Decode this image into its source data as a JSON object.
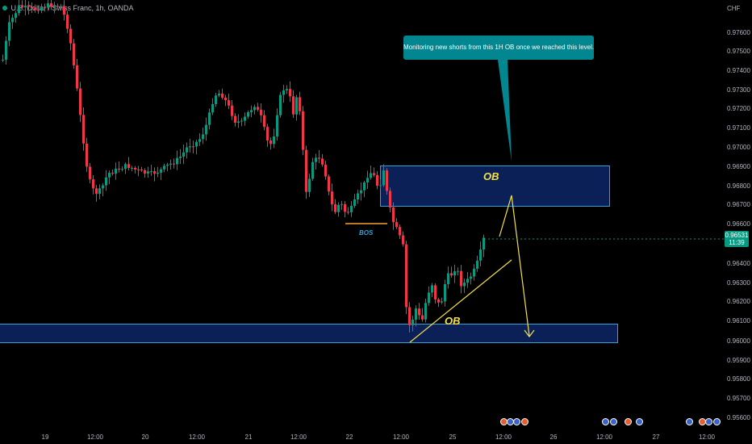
{
  "header": {
    "symbol_title": "U.S. Dollar / Swiss Franc, 1h, OANDA"
  },
  "price_axis": {
    "currency": "CHF",
    "ticks": [
      "0.97600",
      "0.97500",
      "0.97400",
      "0.97300",
      "0.97200",
      "0.97100",
      "0.97000",
      "0.96900",
      "0.96800",
      "0.96700",
      "0.96600",
      "0.96400",
      "0.96300",
      "0.96200",
      "0.96100",
      "0.96000",
      "0.95900",
      "0.95800",
      "0.95700",
      "0.95600"
    ],
    "current_price": "0.96531",
    "countdown": "11:39"
  },
  "time_axis": {
    "ticks": [
      "19",
      "12:00",
      "20",
      "12:00",
      "21",
      "12:00",
      "22",
      "12:00",
      "25",
      "12:00",
      "26",
      "12:00",
      "27",
      "12:00"
    ]
  },
  "annotations": {
    "callout_text": "Monitoring new shorts from this 1H OB once we reached this level.",
    "upper_zone_label": "OB",
    "lower_zone_label": "OB",
    "bos_label": "BOS"
  },
  "colors": {
    "bull": "#089981",
    "bear": "#f23645",
    "zone_fill": "#0b2057",
    "zone_border": "#2fa3d9",
    "label": "#f5e148",
    "callout": "#02868f",
    "projection": "#f5e148",
    "bos_line": "#f7a12e"
  },
  "event_icons": [
    "flag-icon",
    "flag-icon",
    "flag-icon",
    "flag-icon",
    "flag-icon",
    "flag-icon",
    "flag-icon",
    "flag-icon",
    "flag-icon",
    "flag-icon"
  ]
}
